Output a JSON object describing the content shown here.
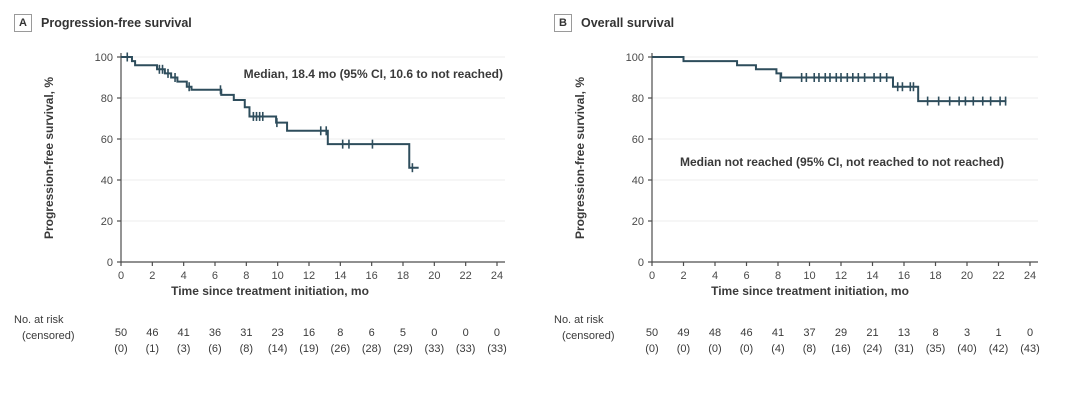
{
  "colors": {
    "curve": "#2e4d5c",
    "grid": "#f1f1f1",
    "axis": "#4d4d4d",
    "tick_text": "#4a4a4a",
    "text": "#3a3a3a"
  },
  "chart_data": [
    {
      "type": "line",
      "subtype": "kaplan-meier-step",
      "panel_letter": "A",
      "title": "Progression-free survival",
      "y_label": "Progression-free survival, %",
      "x_label": "Time since treatment initiation, mo",
      "annotation": "Median, 18.4 mo (95% CI, 10.6 to not reached)",
      "xlim": [
        0,
        24
      ],
      "ylim": [
        0,
        100
      ],
      "x_ticks": [
        0,
        2,
        4,
        6,
        8,
        10,
        12,
        14,
        16,
        18,
        20,
        22,
        24
      ],
      "y_ticks": [
        0,
        20,
        40,
        60,
        80,
        100
      ],
      "grid": "horizontal-light",
      "legend": "none",
      "curve_start": [
        0,
        100
      ],
      "end_time": 19.0,
      "steps": [
        [
          0.7,
          98
        ],
        [
          0.9,
          96
        ],
        [
          2.3,
          94
        ],
        [
          2.8,
          92
        ],
        [
          3.2,
          90
        ],
        [
          3.6,
          88
        ],
        [
          4.2,
          85.5
        ],
        [
          4.5,
          84
        ],
        [
          6.4,
          81.5
        ],
        [
          7.2,
          79
        ],
        [
          7.9,
          75.5
        ],
        [
          8.2,
          71
        ],
        [
          9.9,
          68
        ],
        [
          10.6,
          64
        ],
        [
          13.2,
          57.5
        ],
        [
          18.4,
          46
        ]
      ],
      "censor_marks": [
        [
          0.4,
          100
        ],
        [
          2.45,
          94
        ],
        [
          2.65,
          94
        ],
        [
          3.0,
          92
        ],
        [
          3.45,
          90
        ],
        [
          4.35,
          85.5
        ],
        [
          6.35,
          84
        ],
        [
          8.45,
          71
        ],
        [
          8.65,
          71
        ],
        [
          8.85,
          71
        ],
        [
          9.05,
          71
        ],
        [
          9.95,
          68
        ],
        [
          12.75,
          64
        ],
        [
          13.1,
          64
        ],
        [
          14.15,
          57.5
        ],
        [
          14.55,
          57.5
        ],
        [
          16.05,
          57.5
        ],
        [
          18.6,
          46
        ]
      ],
      "risk_table": {
        "row1_label": "No. at risk",
        "row2_label": "(censored)",
        "times": [
          0,
          2,
          4,
          6,
          8,
          10,
          12,
          14,
          16,
          18,
          20,
          22,
          24
        ],
        "counts": [
          50,
          46,
          41,
          36,
          31,
          23,
          16,
          8,
          6,
          5,
          0,
          0,
          0
        ],
        "censored": [
          "(0)",
          "(1)",
          "(3)",
          "(6)",
          "(8)",
          "(14)",
          "(19)",
          "(26)",
          "(28)",
          "(29)",
          "(33)",
          "(33)",
          "(33)"
        ]
      }
    },
    {
      "type": "line",
      "subtype": "kaplan-meier-step",
      "panel_letter": "B",
      "title": "Overall survival",
      "y_label": "Progression-free survival, %",
      "x_label": "Time since treatment initiation, mo",
      "annotation": "Median not reached (95% CI, not reached to not reached)",
      "xlim": [
        0,
        24
      ],
      "ylim": [
        0,
        100
      ],
      "x_ticks": [
        0,
        2,
        4,
        6,
        8,
        10,
        12,
        14,
        16,
        18,
        20,
        22,
        24
      ],
      "y_ticks": [
        0,
        20,
        40,
        60,
        80,
        100
      ],
      "grid": "horizontal-light",
      "legend": "none",
      "curve_start": [
        0,
        100
      ],
      "end_time": 22.5,
      "steps": [
        [
          2.0,
          98
        ],
        [
          5.4,
          96
        ],
        [
          6.6,
          94
        ],
        [
          7.9,
          92
        ],
        [
          8.2,
          90
        ],
        [
          15.3,
          85.5
        ],
        [
          16.9,
          78.5
        ]
      ],
      "censor_marks": [
        [
          8.15,
          90
        ],
        [
          9.5,
          90
        ],
        [
          9.8,
          90
        ],
        [
          10.3,
          90
        ],
        [
          10.6,
          90
        ],
        [
          11.0,
          90
        ],
        [
          11.3,
          90
        ],
        [
          11.7,
          90
        ],
        [
          12.0,
          90
        ],
        [
          12.4,
          90
        ],
        [
          12.75,
          90
        ],
        [
          13.1,
          90
        ],
        [
          13.5,
          90
        ],
        [
          14.1,
          90
        ],
        [
          14.5,
          90
        ],
        [
          14.9,
          90
        ],
        [
          15.6,
          85.5
        ],
        [
          15.9,
          85.5
        ],
        [
          16.4,
          85.5
        ],
        [
          16.6,
          85.5
        ],
        [
          17.5,
          78.5
        ],
        [
          18.2,
          78.5
        ],
        [
          18.9,
          78.5
        ],
        [
          19.5,
          78.5
        ],
        [
          19.9,
          78.5
        ],
        [
          20.4,
          78.5
        ],
        [
          21.0,
          78.5
        ],
        [
          21.5,
          78.5
        ],
        [
          22.1,
          78.5
        ],
        [
          22.45,
          78.5
        ]
      ],
      "risk_table": {
        "row1_label": "No. at risk",
        "row2_label": "(censored)",
        "times": [
          0,
          2,
          4,
          6,
          8,
          10,
          12,
          14,
          16,
          18,
          20,
          22,
          24
        ],
        "counts": [
          50,
          49,
          48,
          46,
          41,
          37,
          29,
          21,
          13,
          8,
          3,
          1,
          0
        ],
        "censored": [
          "(0)",
          "(0)",
          "(0)",
          "(0)",
          "(4)",
          "(8)",
          "(16)",
          "(24)",
          "(31)",
          "(35)",
          "(40)",
          "(42)",
          "(43)"
        ]
      }
    }
  ]
}
